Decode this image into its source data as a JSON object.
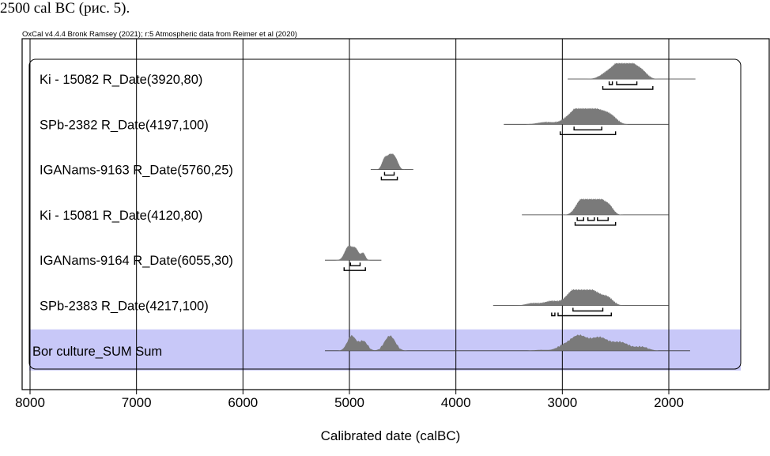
{
  "page": {
    "caption": "2500 cal BC (рис. 5)."
  },
  "chart_data": {
    "type": "multiple-plot",
    "header": "OxCal v4.4.4 Bronk Ramsey (2021); r:5 Atmospheric data from Reimer et al (2020)",
    "xlabel": "Calibrated date (calBC)",
    "x_axis_reversed": true,
    "xlim": [
      8000,
      1250
    ],
    "x_ticks": [
      8000,
      7000,
      6000,
      5000,
      4000,
      3000,
      2000
    ],
    "grid_vertical": true,
    "highlight_color": "#c8c8f8",
    "distribution_color": "#7a7a7a",
    "rows": [
      {
        "label": "Ki - 15082 R_Date(3920,80)",
        "line": [
          2950,
          1750
        ],
        "peaks": [
          [
            2560,
            70,
            0.5
          ],
          [
            2450,
            60,
            0.95
          ],
          [
            2350,
            60,
            0.85
          ],
          [
            2250,
            50,
            0.45
          ]
        ],
        "ranges_68": [
          [
            2560,
            2530
          ],
          [
            2490,
            2300
          ]
        ],
        "ranges_95": [
          [
            2620,
            2150
          ]
        ]
      },
      {
        "label": "SPb-2382 R_Date(4197,100)",
        "line": [
          3550,
          2000
        ],
        "peaks": [
          [
            3150,
            80,
            0.15
          ],
          [
            2920,
            70,
            0.55
          ],
          [
            2820,
            60,
            0.95
          ],
          [
            2720,
            70,
            0.9
          ],
          [
            2600,
            60,
            0.6
          ],
          [
            2520,
            50,
            0.3
          ]
        ],
        "ranges_68": [
          [
            2890,
            2630
          ]
        ],
        "ranges_95": [
          [
            3020,
            2500
          ]
        ]
      },
      {
        "label": "IGANams-9163 R_Date(5760,25)",
        "line": [
          4800,
          4400
        ],
        "peaks": [
          [
            4670,
            25,
            0.7
          ],
          [
            4610,
            30,
            1.0
          ],
          [
            4560,
            25,
            0.5
          ]
        ],
        "ranges_68": [
          [
            4670,
            4580
          ]
        ],
        "ranges_95": [
          [
            4700,
            4550
          ]
        ]
      },
      {
        "label": "Ki - 15081 R_Date(4120,80)",
        "line": [
          3380,
          2000
        ],
        "peaks": [
          [
            2830,
            50,
            0.85
          ],
          [
            2740,
            50,
            1.0
          ],
          [
            2650,
            50,
            0.95
          ],
          [
            2560,
            40,
            0.55
          ]
        ],
        "ranges_68": [
          [
            2860,
            2800
          ],
          [
            2760,
            2700
          ],
          [
            2670,
            2570
          ]
        ],
        "ranges_95": [
          [
            2880,
            2500
          ]
        ]
      },
      {
        "label": "IGANams-9164 R_Date(6055,30)",
        "line": [
          5230,
          4700
        ],
        "peaks": [
          [
            5010,
            35,
            0.9
          ],
          [
            4940,
            30,
            0.7
          ],
          [
            4870,
            20,
            0.45
          ]
        ],
        "ranges_68": [
          [
            4990,
            4900
          ]
        ],
        "ranges_95": [
          [
            5050,
            4850
          ]
        ]
      },
      {
        "label": "SPb-2383 R_Date(4217,100)",
        "line": [
          3650,
          2000
        ],
        "peaks": [
          [
            3280,
            60,
            0.15
          ],
          [
            3100,
            70,
            0.3
          ],
          [
            2920,
            60,
            0.7
          ],
          [
            2820,
            60,
            1.0
          ],
          [
            2700,
            70,
            0.85
          ],
          [
            2570,
            50,
            0.45
          ]
        ],
        "ranges_68": [
          [
            2900,
            2620
          ]
        ],
        "ranges_95": [
          [
            3100,
            3070
          ],
          [
            3040,
            2540
          ]
        ]
      },
      {
        "label": "Bor culture_SUM Sum",
        "highlight": true,
        "line": [
          5230,
          1800
        ],
        "peaks": [
          [
            4980,
            40,
            1.0
          ],
          [
            4870,
            40,
            0.65
          ],
          [
            4620,
            50,
            1.0
          ],
          [
            3200,
            60,
            0.06
          ],
          [
            3000,
            60,
            0.25
          ],
          [
            2850,
            80,
            1.0
          ],
          [
            2650,
            80,
            0.85
          ],
          [
            2450,
            80,
            0.55
          ],
          [
            2250,
            60,
            0.25
          ]
        ],
        "ranges_68": [],
        "ranges_95": []
      }
    ]
  }
}
